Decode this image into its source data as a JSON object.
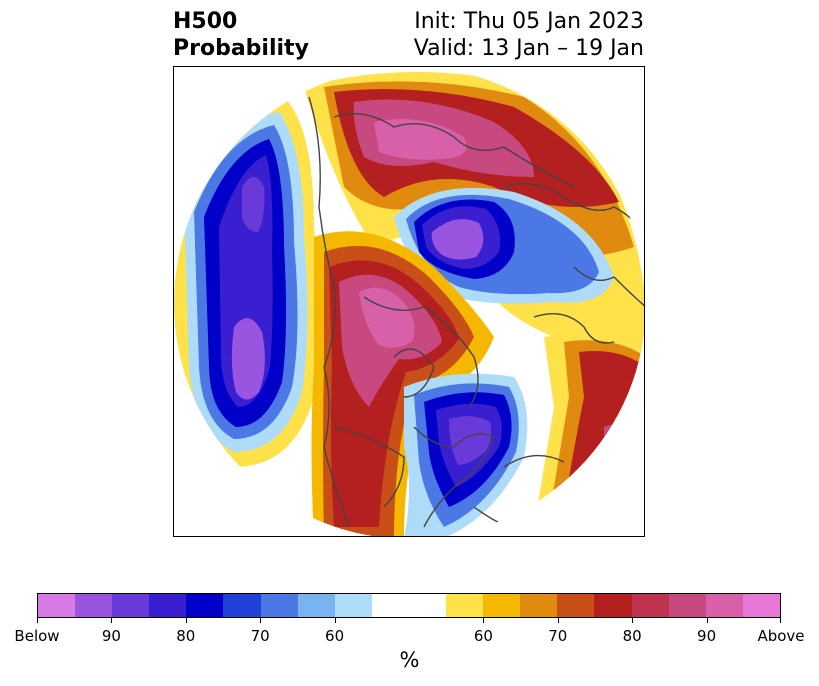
{
  "title": {
    "left_line1": "H500",
    "left_line2": "Probability",
    "right_line1": "Init: Thu 05 Jan 2023",
    "right_line2": "Valid: 13 Jan – 19 Jan"
  },
  "map": {
    "projection": "polar stereographic, circular clip",
    "features": [
      "coastlines",
      "country borders",
      "US state borders",
      "Canadian province borders"
    ]
  },
  "colorbar": {
    "unit": "%",
    "colors": [
      "#d87ae6",
      "#9a55e0",
      "#6a3ad8",
      "#3a1fd0",
      "#0000c8",
      "#2040d8",
      "#4c78e6",
      "#78b4f0",
      "#aedcf8",
      "#ffffff",
      "#ffe14a",
      "#f5b800",
      "#e08a10",
      "#c85018",
      "#b42020",
      "#c03350",
      "#c84880",
      "#d860a8",
      "#e878d8"
    ],
    "tick_labels": [
      "Below",
      "90",
      "80",
      "70",
      "60",
      "60",
      "70",
      "80",
      "90",
      "Above"
    ]
  }
}
